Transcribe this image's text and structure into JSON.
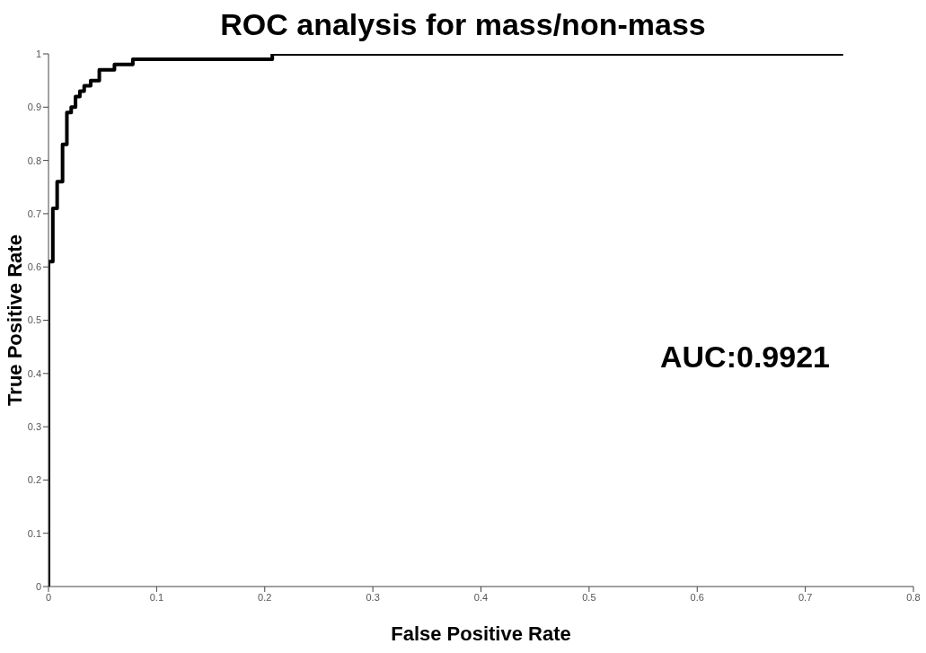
{
  "chart_data": {
    "type": "step",
    "title": "ROC analysis for mass/non-mass",
    "xlabel": "False Positive Rate",
    "ylabel": "True Positive Rate",
    "annotations": [
      "AUC:0.9921"
    ],
    "series": [
      {
        "color": "#000000",
        "x": [
          0,
          0,
          0.004,
          0.008,
          0.013,
          0.017,
          0.021,
          0.025,
          0.029,
          0.033,
          0.036,
          0.039,
          0.047,
          0.061,
          0.078,
          0.207,
          0.735
        ],
        "values": [
          0,
          0.61,
          0.71,
          0.76,
          0.83,
          0.89,
          0.9,
          0.92,
          0.93,
          0.94,
          0.94,
          0.95,
          0.97,
          0.98,
          0.99,
          1,
          1
        ]
      }
    ],
    "xlim": [
      0,
      0.8
    ],
    "xticks": [
      0,
      0.1,
      0.2,
      0.3,
      0.4,
      0.5,
      0.6,
      0.7,
      0.8
    ],
    "ylim": [
      0,
      1
    ],
    "yticks": [
      0,
      0.1,
      0.2,
      0.3,
      0.4,
      0.5,
      0.6,
      0.7,
      0.8,
      0.9,
      1
    ],
    "grid": false,
    "marker": "none",
    "line_style": "solid"
  }
}
